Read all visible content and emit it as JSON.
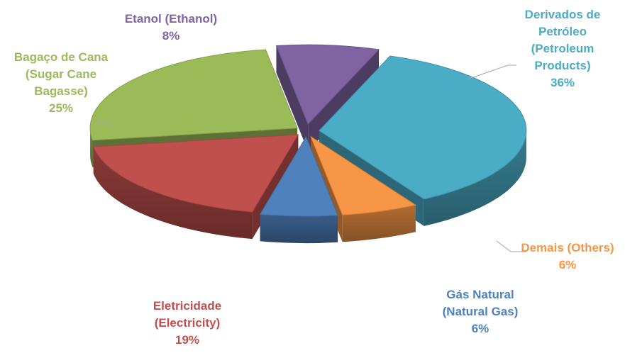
{
  "chart_data": {
    "type": "pie",
    "title": "",
    "legend": "none",
    "slices": [
      {
        "label_lines": [
          "Derivados de",
          "Petróleo",
          "(Petroleum",
          "Products)"
        ],
        "pct_label": "36%",
        "value": 36,
        "color": "#4bacc6"
      },
      {
        "label_lines": [
          "Demais (Others)"
        ],
        "pct_label": "6%",
        "value": 6,
        "color": "#f79646"
      },
      {
        "label_lines": [
          "Gás Natural",
          "(Natural Gas)"
        ],
        "pct_label": "6%",
        "value": 6,
        "color": "#4f81bd"
      },
      {
        "label_lines": [
          "Eletricidade",
          "(Electricity)"
        ],
        "pct_label": "19%",
        "value": 19,
        "color": "#c0504d"
      },
      {
        "label_lines": [
          "Bagaço de Cana",
          "(Sugar Cane",
          "Bagasse)"
        ],
        "pct_label": "25%",
        "value": 25,
        "color": "#9bbb59"
      },
      {
        "label_lines": [
          "Etanol (Ethanol)"
        ],
        "pct_label": "8%",
        "value": 8,
        "color": "#8064a2"
      }
    ]
  }
}
